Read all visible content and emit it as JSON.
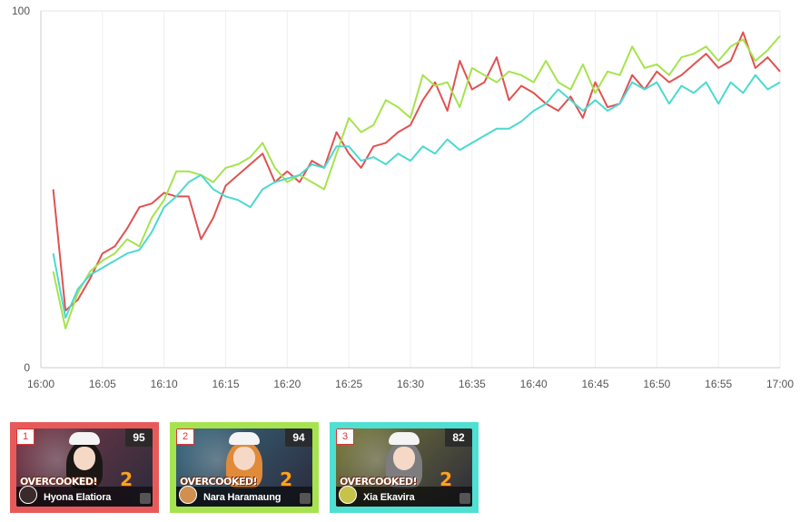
{
  "chart_data": {
    "type": "line",
    "title": "",
    "xlabel": "",
    "ylabel": "",
    "ylim": [
      0,
      100
    ],
    "xlim": [
      "16:00",
      "17:00"
    ],
    "x_ticks": [
      "16:00",
      "16:05",
      "16:10",
      "16:15",
      "16:20",
      "16:25",
      "16:30",
      "16:35",
      "16:40",
      "16:45",
      "16:50",
      "16:55",
      "17:00"
    ],
    "y_ticks": [
      0,
      100
    ],
    "grid": "vertical",
    "series": [
      {
        "color": "#e05252",
        "points": [
          [
            "16:01",
            50
          ],
          [
            "16:02",
            16
          ],
          [
            "16:03",
            19
          ],
          [
            "16:04",
            25
          ],
          [
            "16:05",
            32
          ],
          [
            "16:06",
            34
          ],
          [
            "16:07",
            39
          ],
          [
            "16:08",
            45
          ],
          [
            "16:09",
            46
          ],
          [
            "16:10",
            49
          ],
          [
            "16:11",
            48
          ],
          [
            "16:12",
            48
          ],
          [
            "16:13",
            36
          ],
          [
            "16:14",
            42
          ],
          [
            "16:15",
            51
          ],
          [
            "16:16",
            54
          ],
          [
            "16:17",
            57
          ],
          [
            "16:18",
            60
          ],
          [
            "16:19",
            52
          ],
          [
            "16:20",
            55
          ],
          [
            "16:21",
            52
          ],
          [
            "16:22",
            58
          ],
          [
            "16:23",
            56
          ],
          [
            "16:24",
            66
          ],
          [
            "16:25",
            60
          ],
          [
            "16:26",
            56
          ],
          [
            "16:27",
            62
          ],
          [
            "16:28",
            63
          ],
          [
            "16:29",
            66
          ],
          [
            "16:30",
            68
          ],
          [
            "16:31",
            75
          ],
          [
            "16:32",
            80
          ],
          [
            "16:33",
            72
          ],
          [
            "16:34",
            86
          ],
          [
            "16:35",
            78
          ],
          [
            "16:36",
            80
          ],
          [
            "16:37",
            87
          ],
          [
            "16:38",
            75
          ],
          [
            "16:39",
            79
          ],
          [
            "16:40",
            77
          ],
          [
            "16:41",
            74
          ],
          [
            "16:42",
            72
          ],
          [
            "16:43",
            76
          ],
          [
            "16:44",
            70
          ],
          [
            "16:45",
            80
          ],
          [
            "16:46",
            73
          ],
          [
            "16:47",
            74
          ],
          [
            "16:48",
            82
          ],
          [
            "16:49",
            78
          ],
          [
            "16:50",
            83
          ],
          [
            "16:51",
            80
          ],
          [
            "16:52",
            82
          ],
          [
            "16:53",
            85
          ],
          [
            "16:54",
            88
          ],
          [
            "16:55",
            84
          ],
          [
            "16:56",
            86
          ],
          [
            "16:57",
            94
          ],
          [
            "16:58",
            84
          ],
          [
            "16:59",
            87
          ],
          [
            "17:00",
            83
          ]
        ]
      },
      {
        "color": "#a6e34f",
        "points": [
          [
            "16:01",
            27
          ],
          [
            "16:02",
            11
          ],
          [
            "16:03",
            21
          ],
          [
            "16:04",
            27
          ],
          [
            "16:05",
            30
          ],
          [
            "16:06",
            32
          ],
          [
            "16:07",
            36
          ],
          [
            "16:08",
            34
          ],
          [
            "16:09",
            42
          ],
          [
            "16:10",
            47
          ],
          [
            "16:11",
            55
          ],
          [
            "16:12",
            55
          ],
          [
            "16:13",
            54
          ],
          [
            "16:14",
            52
          ],
          [
            "16:15",
            56
          ],
          [
            "16:16",
            57
          ],
          [
            "16:17",
            59
          ],
          [
            "16:18",
            63
          ],
          [
            "16:19",
            56
          ],
          [
            "16:20",
            52
          ],
          [
            "16:21",
            54
          ],
          [
            "16:22",
            52
          ],
          [
            "16:23",
            50
          ],
          [
            "16:24",
            60
          ],
          [
            "16:25",
            70
          ],
          [
            "16:26",
            66
          ],
          [
            "16:27",
            68
          ],
          [
            "16:28",
            75
          ],
          [
            "16:29",
            73
          ],
          [
            "16:30",
            70
          ],
          [
            "16:31",
            82
          ],
          [
            "16:32",
            79
          ],
          [
            "16:33",
            80
          ],
          [
            "16:34",
            73
          ],
          [
            "16:35",
            84
          ],
          [
            "16:36",
            82
          ],
          [
            "16:37",
            80
          ],
          [
            "16:38",
            83
          ],
          [
            "16:39",
            82
          ],
          [
            "16:40",
            80
          ],
          [
            "16:41",
            86
          ],
          [
            "16:42",
            80
          ],
          [
            "16:43",
            78
          ],
          [
            "16:44",
            85
          ],
          [
            "16:45",
            77
          ],
          [
            "16:46",
            83
          ],
          [
            "16:47",
            82
          ],
          [
            "16:48",
            90
          ],
          [
            "16:49",
            84
          ],
          [
            "16:50",
            85
          ],
          [
            "16:51",
            82
          ],
          [
            "16:52",
            87
          ],
          [
            "16:53",
            88
          ],
          [
            "16:54",
            90
          ],
          [
            "16:55",
            86
          ],
          [
            "16:56",
            90
          ],
          [
            "16:57",
            92
          ],
          [
            "16:58",
            86
          ],
          [
            "16:59",
            89
          ],
          [
            "17:00",
            93
          ]
        ]
      },
      {
        "color": "#4cd9d0",
        "points": [
          [
            "16:01",
            32
          ],
          [
            "16:02",
            14
          ],
          [
            "16:03",
            22
          ],
          [
            "16:04",
            26
          ],
          [
            "16:05",
            28
          ],
          [
            "16:06",
            30
          ],
          [
            "16:07",
            32
          ],
          [
            "16:08",
            33
          ],
          [
            "16:09",
            38
          ],
          [
            "16:10",
            45
          ],
          [
            "16:11",
            48
          ],
          [
            "16:12",
            52
          ],
          [
            "16:13",
            54
          ],
          [
            "16:14",
            50
          ],
          [
            "16:15",
            48
          ],
          [
            "16:16",
            47
          ],
          [
            "16:17",
            45
          ],
          [
            "16:18",
            50
          ],
          [
            "16:19",
            52
          ],
          [
            "16:20",
            53
          ],
          [
            "16:21",
            54
          ],
          [
            "16:22",
            57
          ],
          [
            "16:23",
            56
          ],
          [
            "16:24",
            62
          ],
          [
            "16:25",
            62
          ],
          [
            "16:26",
            58
          ],
          [
            "16:27",
            59
          ],
          [
            "16:28",
            57
          ],
          [
            "16:29",
            60
          ],
          [
            "16:30",
            58
          ],
          [
            "16:31",
            62
          ],
          [
            "16:32",
            60
          ],
          [
            "16:33",
            64
          ],
          [
            "16:34",
            61
          ],
          [
            "16:35",
            63
          ],
          [
            "16:36",
            65
          ],
          [
            "16:37",
            67
          ],
          [
            "16:38",
            67
          ],
          [
            "16:39",
            69
          ],
          [
            "16:40",
            72
          ],
          [
            "16:41",
            74
          ],
          [
            "16:42",
            78
          ],
          [
            "16:43",
            75
          ],
          [
            "16:44",
            72
          ],
          [
            "16:45",
            75
          ],
          [
            "16:46",
            72
          ],
          [
            "16:47",
            74
          ],
          [
            "16:48",
            80
          ],
          [
            "16:49",
            78
          ],
          [
            "16:50",
            80
          ],
          [
            "16:51",
            74
          ],
          [
            "16:52",
            79
          ],
          [
            "16:53",
            77
          ],
          [
            "16:54",
            80
          ],
          [
            "16:55",
            74
          ],
          [
            "16:56",
            80
          ],
          [
            "16:57",
            77
          ],
          [
            "16:58",
            82
          ],
          [
            "16:59",
            78
          ],
          [
            "17:00",
            80
          ]
        ]
      }
    ]
  },
  "cards": [
    {
      "rank": "1",
      "score": "95",
      "name": "Hyona Elatiora",
      "game_logo": "OVERCOOKED!",
      "game_logo_num": "2",
      "frame_color": "#e85a5a",
      "bg_color": "#7a3a4a",
      "hair_color": "#1b1714",
      "avatar_color": "#3a2a2a"
    },
    {
      "rank": "2",
      "score": "94",
      "name": "Nara Haramaung",
      "game_logo": "OVERCOOKED!",
      "game_logo_num": "2",
      "frame_color": "#a6e34f",
      "bg_color": "#3a6a80",
      "hair_color": "#e08a3a",
      "avatar_color": "#d09050"
    },
    {
      "rank": "3",
      "score": "82",
      "name": "Xia Ekavira",
      "game_logo": "OVERCOOKED!",
      "game_logo_num": "2",
      "frame_color": "#4ee0d2",
      "bg_color": "#7a7a3a",
      "hair_color": "#7d7d80",
      "avatar_color": "#c7c24a"
    }
  ]
}
